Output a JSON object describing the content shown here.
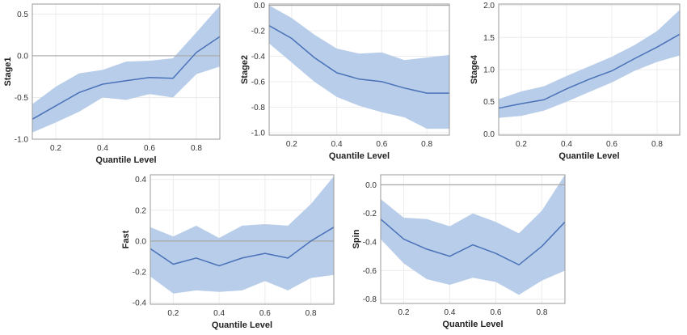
{
  "chart_data": [
    {
      "type": "line",
      "xlabel": "Quantile Level",
      "ylabel": "Stage1",
      "x": [
        0.1,
        0.2,
        0.3,
        0.4,
        0.5,
        0.6,
        0.7,
        0.8,
        0.9
      ],
      "xticks": [
        0.2,
        0.4,
        0.6,
        0.8
      ],
      "xtick_labels": [
        "0.2",
        "0.4",
        "0.6",
        "0.8"
      ],
      "xlim": [
        0.1,
        0.9
      ],
      "yticks": [
        -1.0,
        -0.5,
        0.0,
        0.5
      ],
      "ytick_labels": [
        "-1.0",
        "-0.5",
        "0.0",
        "0.5"
      ],
      "ylim": [
        -1.0,
        0.62
      ],
      "reference_line": 0,
      "series": [
        {
          "estimate": [
            -0.76,
            -0.6,
            -0.44,
            -0.34,
            -0.3,
            -0.26,
            -0.27,
            0.04,
            0.23
          ],
          "lower": [
            -0.92,
            -0.8,
            -0.67,
            -0.5,
            -0.53,
            -0.46,
            -0.5,
            -0.22,
            -0.13
          ],
          "upper": [
            -0.58,
            -0.37,
            -0.21,
            -0.17,
            -0.07,
            -0.06,
            -0.03,
            0.28,
            0.6
          ]
        }
      ],
      "grid": true
    },
    {
      "type": "line",
      "xlabel": "Quantile Level",
      "ylabel": "Stage2",
      "x": [
        0.1,
        0.2,
        0.3,
        0.4,
        0.5,
        0.6,
        0.7,
        0.8,
        0.9
      ],
      "xticks": [
        0.2,
        0.4,
        0.6,
        0.8
      ],
      "xtick_labels": [
        "0.2",
        "0.4",
        "0.6",
        "0.8"
      ],
      "xlim": [
        0.1,
        0.9
      ],
      "yticks": [
        0.0,
        -0.2,
        -0.4,
        -0.6,
        -0.8,
        -1.0
      ],
      "ytick_labels": [
        "0.0",
        "-0.2",
        "-0.4",
        "-0.6",
        "-0.8",
        "-1.0"
      ],
      "ylim": [
        -1.02,
        0.01
      ],
      "reference_line": 0,
      "series": [
        {
          "estimate": [
            -0.16,
            -0.26,
            -0.41,
            -0.53,
            -0.58,
            -0.6,
            -0.65,
            -0.69,
            -0.69
          ],
          "lower": [
            -0.3,
            -0.45,
            -0.6,
            -0.72,
            -0.79,
            -0.84,
            -0.88,
            -0.97,
            -0.97
          ],
          "upper": [
            0.0,
            -0.1,
            -0.23,
            -0.34,
            -0.38,
            -0.37,
            -0.43,
            -0.41,
            -0.39
          ]
        }
      ],
      "grid": true
    },
    {
      "type": "line",
      "xlabel": "Quantile Level",
      "ylabel": "Stage4",
      "x": [
        0.1,
        0.2,
        0.3,
        0.4,
        0.5,
        0.6,
        0.7,
        0.8,
        0.9
      ],
      "xticks": [
        0.2,
        0.4,
        0.6,
        0.8
      ],
      "xtick_labels": [
        "0.2",
        "0.4",
        "0.6",
        "0.8"
      ],
      "xlim": [
        0.1,
        0.9
      ],
      "yticks": [
        0.0,
        0.5,
        1.0,
        1.5,
        2.0
      ],
      "ytick_labels": [
        "0.0",
        "0.5",
        "1.0",
        "1.5",
        "2.0"
      ],
      "ylim": [
        -0.02,
        2.02
      ],
      "series": [
        {
          "estimate": [
            0.4,
            0.47,
            0.53,
            0.7,
            0.85,
            0.98,
            1.17,
            1.35,
            1.55
          ],
          "lower": [
            0.25,
            0.28,
            0.36,
            0.5,
            0.65,
            0.8,
            0.98,
            1.12,
            1.22
          ],
          "upper": [
            0.54,
            0.66,
            0.74,
            0.9,
            1.05,
            1.2,
            1.38,
            1.6,
            1.93
          ]
        }
      ],
      "grid": true
    },
    {
      "type": "line",
      "xlabel": "Quantile Level",
      "ylabel": "Fast",
      "x": [
        0.1,
        0.2,
        0.3,
        0.4,
        0.5,
        0.6,
        0.7,
        0.8,
        0.9
      ],
      "xticks": [
        0.2,
        0.4,
        0.6,
        0.8
      ],
      "xtick_labels": [
        "0.2",
        "0.4",
        "0.6",
        "0.8"
      ],
      "xlim": [
        0.1,
        0.9
      ],
      "yticks": [
        -0.4,
        -0.2,
        0.0,
        0.2,
        0.4
      ],
      "ytick_labels": [
        "-0.4",
        "-0.2",
        "0.0",
        "0.2",
        "0.4"
      ],
      "ylim": [
        -0.41,
        0.43
      ],
      "reference_line": 0,
      "series": [
        {
          "estimate": [
            -0.05,
            -0.15,
            -0.11,
            -0.16,
            -0.11,
            -0.08,
            -0.11,
            0.0,
            0.09
          ],
          "lower": [
            -0.23,
            -0.34,
            -0.32,
            -0.33,
            -0.32,
            -0.26,
            -0.32,
            -0.24,
            -0.22
          ],
          "upper": [
            0.09,
            0.03,
            0.1,
            0.02,
            0.1,
            0.11,
            0.1,
            0.24,
            0.42
          ]
        }
      ],
      "grid": true
    },
    {
      "type": "line",
      "xlabel": "Quantile Level",
      "ylabel": "Spin",
      "x": [
        0.1,
        0.2,
        0.3,
        0.4,
        0.5,
        0.6,
        0.7,
        0.8,
        0.9
      ],
      "xticks": [
        0.2,
        0.4,
        0.6,
        0.8
      ],
      "xtick_labels": [
        "0.2",
        "0.4",
        "0.6",
        "0.8"
      ],
      "xlim": [
        0.1,
        0.9
      ],
      "yticks": [
        0.0,
        -0.2,
        -0.4,
        -0.6,
        -0.8
      ],
      "ytick_labels": [
        "0.0",
        "-0.2",
        "-0.4",
        "-0.6",
        "-0.8"
      ],
      "ylim": [
        -0.83,
        0.07
      ],
      "reference_line": 0,
      "series": [
        {
          "estimate": [
            -0.24,
            -0.38,
            -0.45,
            -0.5,
            -0.42,
            -0.48,
            -0.56,
            -0.43,
            -0.26
          ],
          "lower": [
            -0.38,
            -0.55,
            -0.66,
            -0.7,
            -0.65,
            -0.68,
            -0.77,
            -0.67,
            -0.6
          ],
          "upper": [
            -0.1,
            -0.23,
            -0.24,
            -0.29,
            -0.2,
            -0.26,
            -0.34,
            -0.18,
            0.07
          ]
        }
      ],
      "grid": true
    }
  ]
}
